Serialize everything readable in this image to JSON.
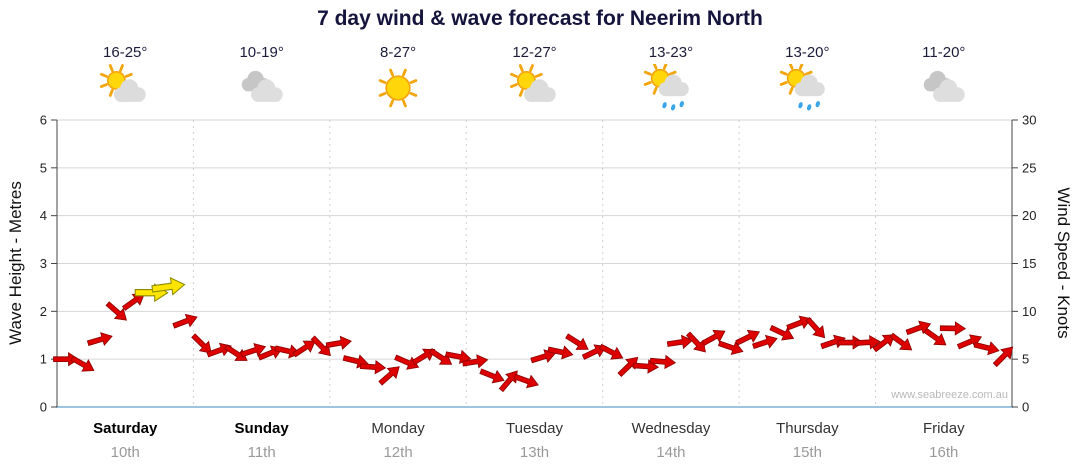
{
  "title": "7 day wind & wave forecast for Neerim North",
  "watermark": "www.seabreeze.com.au",
  "axes": {
    "left_label": "Wave Height - Metres",
    "right_label": "Wind Speed - Knots",
    "left_ticks": [
      "0",
      "1",
      "2",
      "3",
      "4",
      "5",
      "6"
    ],
    "right_ticks": [
      "0",
      "5",
      "10",
      "15",
      "20",
      "25",
      "30"
    ]
  },
  "days": [
    {
      "name": "Saturday",
      "date": "10th",
      "temp": "16-25°",
      "icon": "partly-cloudy",
      "bold": true
    },
    {
      "name": "Sunday",
      "date": "11th",
      "temp": "10-19°",
      "icon": "cloudy",
      "bold": true
    },
    {
      "name": "Monday",
      "date": "12th",
      "temp": "8-27°",
      "icon": "sunny",
      "bold": false
    },
    {
      "name": "Tuesday",
      "date": "13th",
      "temp": "12-27°",
      "icon": "partly-cloudy",
      "bold": false
    },
    {
      "name": "Wednesday",
      "date": "14th",
      "temp": "13-23°",
      "icon": "sun-showers",
      "bold": false
    },
    {
      "name": "Thursday",
      "date": "15th",
      "temp": "13-20°",
      "icon": "sun-showers",
      "bold": false
    },
    {
      "name": "Friday",
      "date": "16th",
      "temp": "11-20°",
      "icon": "cloudy",
      "bold": false
    }
  ],
  "chart_data": {
    "type": "line",
    "x_categories": [
      "Saturday",
      "Sunday",
      "Monday",
      "Tuesday",
      "Wednesday",
      "Thursday",
      "Friday"
    ],
    "points_per_day": 8,
    "series": [
      {
        "name": "Wind speed (knots)",
        "values": [
          5,
          4.5,
          7,
          10,
          11,
          12,
          12.5,
          9,
          6.5,
          6,
          5.5,
          6,
          5.5,
          6,
          6,
          6.5,
          6.5,
          5,
          4,
          3.5,
          4.5,
          5.5,
          5,
          5.5,
          4.5,
          3.5,
          2.5,
          3,
          5,
          6,
          6.5,
          6,
          5.5,
          4.5,
          4,
          5,
          6.5,
          7,
          7,
          6.5,
          7,
          7,
          7.5,
          9,
          8,
          7,
          6.5,
          7,
          6.5,
          7,
          8,
          7.5,
          8,
          7,
          6,
          5.5
        ]
      }
    ],
    "highlight_yellow_indices": [
      5,
      6
    ],
    "left_axis_range_metres": [
      0,
      6
    ],
    "right_axis_range_knots": [
      0,
      30
    ],
    "grid": true,
    "legend": "none",
    "arrow_color": "#dd0000",
    "arrow_outline": "#8b0000",
    "highlight_color": "#ffe400",
    "highlight_outline": "#8a8a00"
  }
}
